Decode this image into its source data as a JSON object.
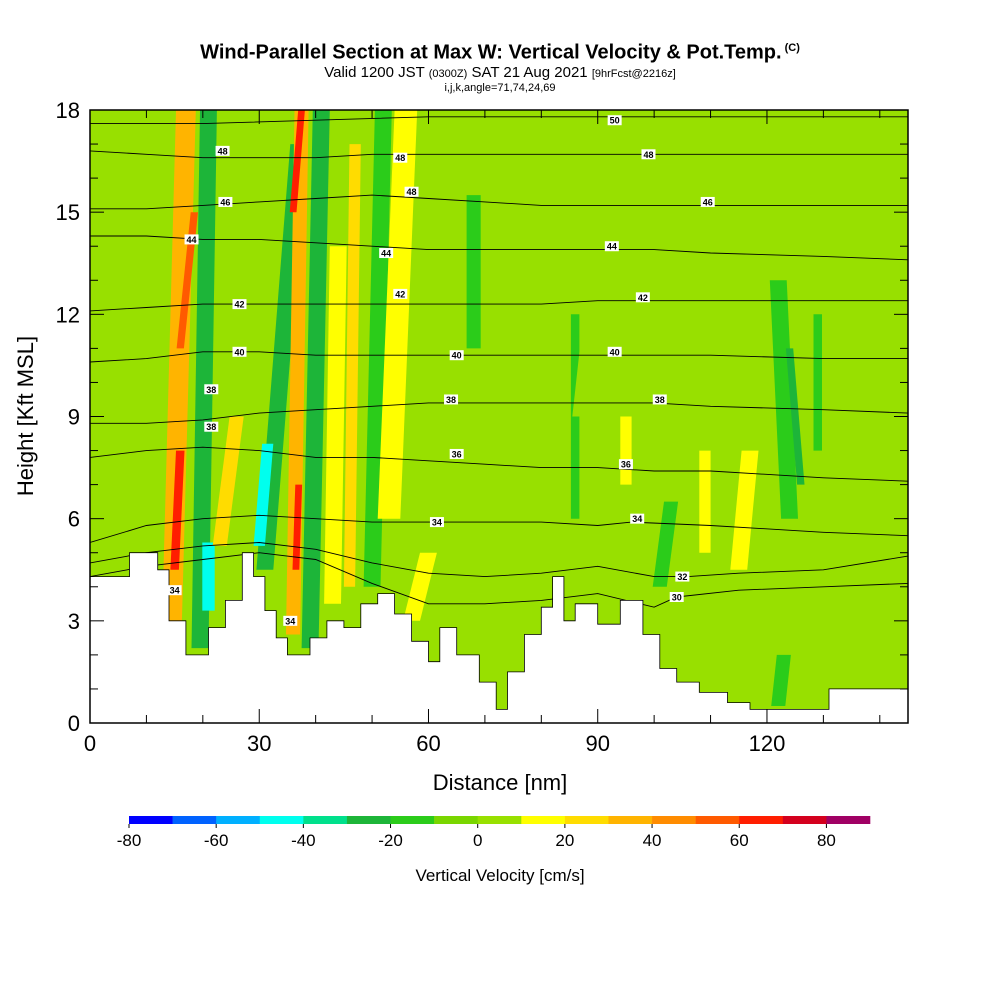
{
  "header": {
    "title": "Wind-Parallel Section at Max W: Vertical Velocity & Pot.Temp.",
    "copyright": "(C)",
    "valid_prefix": "Valid 1200 JST",
    "valid_z": "(0300Z)",
    "valid_date": "SAT 21 Aug 2021",
    "forecast": "[9hrFcst@2216z]",
    "indices": "i,j,k,angle=71,74,24,69"
  },
  "chart_data": {
    "type": "heatmap",
    "title": "Wind-Parallel Section at Max W: Vertical Velocity & Pot.Temp.",
    "xlabel": "Distance [nm]",
    "ylabel": "Height [Kft MSL]",
    "xlim": [
      0,
      145
    ],
    "ylim": [
      0,
      18
    ],
    "xticks": [
      0,
      30,
      60,
      90,
      120
    ],
    "yticks": [
      0,
      3,
      6,
      9,
      12,
      15,
      18
    ],
    "x_minor_step": 10,
    "y_minor_step": 1,
    "terrain": {
      "x": [
        0,
        7,
        7,
        12,
        12,
        14,
        14,
        17,
        17,
        21,
        21,
        24,
        24,
        27,
        27,
        29,
        29,
        31,
        31,
        33,
        33,
        35,
        35,
        39,
        39,
        42,
        42,
        45,
        45,
        48,
        48,
        51,
        51,
        54,
        54,
        57,
        57,
        60,
        60,
        62,
        62,
        65,
        65,
        69,
        69,
        72,
        72,
        74,
        74,
        77,
        77,
        80,
        80,
        82,
        82,
        84,
        84,
        86,
        86,
        90,
        90,
        94,
        94,
        98,
        98,
        101,
        101,
        104,
        104,
        108,
        108,
        113,
        113,
        117,
        117,
        131,
        131,
        135,
        135,
        145
      ],
      "y": [
        4.3,
        4.3,
        5.0,
        5.0,
        4.5,
        4.5,
        3.0,
        3.0,
        2.0,
        2.0,
        2.8,
        2.8,
        3.6,
        3.6,
        5.0,
        5.0,
        4.3,
        4.3,
        3.3,
        3.3,
        2.5,
        2.5,
        2.0,
        2.0,
        2.5,
        2.5,
        3.0,
        3.0,
        2.8,
        2.8,
        3.5,
        3.5,
        3.8,
        3.8,
        3.2,
        3.2,
        2.4,
        2.4,
        1.8,
        1.8,
        2.8,
        2.8,
        2.0,
        2.0,
        1.2,
        1.2,
        0.4,
        0.4,
        1.5,
        1.5,
        2.6,
        2.6,
        3.4,
        3.4,
        4.3,
        4.3,
        3.0,
        3.0,
        3.5,
        3.5,
        2.9,
        2.9,
        3.6,
        3.6,
        2.6,
        2.6,
        1.6,
        1.6,
        1.2,
        1.2,
        0.9,
        0.9,
        0.6,
        0.6,
        0.4,
        0.4,
        1.0,
        1.0,
        1.0,
        1.0
      ]
    },
    "background_w": 0,
    "w_features": [
      {
        "x_bottom": 14.5,
        "x_top": 17,
        "y_bottom": 2.8,
        "y_top": 18,
        "width": 3.5,
        "w": 30
      },
      {
        "x_bottom": 15,
        "x_top": 16,
        "y_bottom": 4.5,
        "y_top": 8,
        "width": 1.5,
        "w": 65
      },
      {
        "x_bottom": 16,
        "x_top": 18.5,
        "y_bottom": 11,
        "y_top": 15,
        "width": 1.3,
        "w": 50
      },
      {
        "x_bottom": 19.5,
        "x_top": 21,
        "y_bottom": 2.2,
        "y_top": 18,
        "width": 3,
        "w": -25
      },
      {
        "x_bottom": 21,
        "x_top": 21,
        "y_bottom": 3.3,
        "y_top": 5.3,
        "width": 2.2,
        "w": -45
      },
      {
        "x_bottom": 23,
        "x_top": 26,
        "y_bottom": 5.2,
        "y_top": 9,
        "width": 2.5,
        "w": 20
      },
      {
        "x_bottom": 31,
        "x_top": 37,
        "y_bottom": 4.5,
        "y_top": 17,
        "width": 3,
        "w": -25
      },
      {
        "x_bottom": 30,
        "x_top": 31.5,
        "y_bottom": 5.2,
        "y_top": 8.2,
        "width": 2,
        "w": -50
      },
      {
        "x_bottom": 36,
        "x_top": 37.5,
        "y_bottom": 2.6,
        "y_top": 18,
        "width": 2.5,
        "w": 35
      },
      {
        "x_bottom": 36.5,
        "x_top": 37,
        "y_bottom": 4.5,
        "y_top": 7,
        "width": 1.2,
        "w": 65
      },
      {
        "x_bottom": 36,
        "x_top": 37.5,
        "y_bottom": 15,
        "y_top": 18,
        "width": 1.2,
        "w": 60
      },
      {
        "x_bottom": 39,
        "x_top": 41,
        "y_bottom": 2.2,
        "y_top": 18,
        "width": 3,
        "w": -25
      },
      {
        "x_bottom": 43,
        "x_top": 44,
        "y_bottom": 3.5,
        "y_top": 14,
        "width": 3,
        "w": 15
      },
      {
        "x_bottom": 46,
        "x_top": 47,
        "y_bottom": 4,
        "y_top": 17,
        "width": 2,
        "w": 25
      },
      {
        "x_bottom": 50,
        "x_top": 52,
        "y_bottom": 4,
        "y_top": 18,
        "width": 3,
        "w": -15
      },
      {
        "x_bottom": 53,
        "x_top": 56,
        "y_bottom": 6,
        "y_top": 18,
        "width": 4,
        "w": 10
      },
      {
        "x_bottom": 57,
        "x_top": 60,
        "y_bottom": 3,
        "y_top": 5,
        "width": 3,
        "w": 15
      },
      {
        "x_bottom": 66,
        "x_top": 70,
        "y_bottom": 6,
        "y_top": 12,
        "width": 6,
        "w": 5
      },
      {
        "x_bottom": 68,
        "x_top": 68,
        "y_bottom": 11,
        "y_top": 15.5,
        "width": 2.5,
        "w": -15
      },
      {
        "x_bottom": 86,
        "x_top": 86,
        "y_bottom": 6,
        "y_top": 12,
        "width": 1.5,
        "w": -15
      },
      {
        "x_bottom": 88,
        "x_top": 90,
        "y_bottom": 9,
        "y_top": 12,
        "width": 5,
        "w": 5
      },
      {
        "x_bottom": 95,
        "x_top": 95,
        "y_bottom": 7,
        "y_top": 9,
        "width": 2,
        "w": 15
      },
      {
        "x_bottom": 101,
        "x_top": 103,
        "y_bottom": 4,
        "y_top": 6.5,
        "width": 2.5,
        "w": -20
      },
      {
        "x_bottom": 109,
        "x_top": 109,
        "y_bottom": 5,
        "y_top": 8,
        "width": 2,
        "w": 10
      },
      {
        "x_bottom": 115,
        "x_top": 117,
        "y_bottom": 4.5,
        "y_top": 8,
        "width": 3,
        "w": 10
      },
      {
        "x_bottom": 124,
        "x_top": 122,
        "y_bottom": 6,
        "y_top": 13,
        "width": 3,
        "w": -20
      },
      {
        "x_bottom": 126,
        "x_top": 124,
        "y_bottom": 7,
        "y_top": 11,
        "width": 1.3,
        "w": -30
      },
      {
        "x_bottom": 122,
        "x_top": 123,
        "y_bottom": 0.5,
        "y_top": 2,
        "width": 2.5,
        "w": -20
      },
      {
        "x_bottom": 129,
        "x_top": 129,
        "y_bottom": 8,
        "y_top": 12,
        "width": 1.5,
        "w": -15
      },
      {
        "x_bottom": 135,
        "x_top": 133,
        "y_bottom": 7,
        "y_top": 18,
        "width": 4,
        "w": 5
      },
      {
        "x_bottom": 140,
        "x_top": 142,
        "y_bottom": 6,
        "y_top": 12,
        "width": 5,
        "w": 5
      }
    ],
    "theta_contours": [
      {
        "value": 30,
        "heights": [
          [
            0,
            4.3
          ],
          [
            10,
            4.6
          ],
          [
            20,
            4.8
          ],
          [
            30,
            5.0
          ],
          [
            40,
            4.8
          ],
          [
            50,
            4.1
          ],
          [
            60,
            3.5
          ],
          [
            70,
            3.5
          ],
          [
            80,
            3.6
          ],
          [
            90,
            3.8
          ],
          [
            100,
            3.4
          ],
          [
            104,
            3.7
          ],
          [
            115,
            3.9
          ],
          [
            130,
            4.0
          ],
          [
            145,
            4.1
          ]
        ]
      },
      {
        "value": 32,
        "heights": [
          [
            0,
            4.7
          ],
          [
            10,
            5.0
          ],
          [
            20,
            5.2
          ],
          [
            30,
            5.3
          ],
          [
            40,
            5.1
          ],
          [
            50,
            4.7
          ],
          [
            60,
            4.4
          ],
          [
            70,
            4.3
          ],
          [
            80,
            4.4
          ],
          [
            90,
            4.6
          ],
          [
            100,
            4.3
          ],
          [
            106,
            4.3
          ],
          [
            115,
            4.4
          ],
          [
            130,
            4.5
          ],
          [
            145,
            4.9
          ]
        ]
      },
      {
        "value": 34,
        "heights": [
          [
            0,
            5.3
          ],
          [
            10,
            5.8
          ],
          [
            20,
            6.0
          ],
          [
            30,
            6.1
          ],
          [
            40,
            6.0
          ],
          [
            50,
            5.9
          ],
          [
            60,
            5.9
          ],
          [
            70,
            5.9
          ],
          [
            80,
            5.9
          ],
          [
            90,
            5.8
          ],
          [
            96,
            5.9
          ],
          [
            110,
            5.8
          ],
          [
            130,
            5.6
          ],
          [
            145,
            5.5
          ]
        ]
      },
      {
        "value": 36,
        "heights": [
          [
            0,
            7.8
          ],
          [
            10,
            8.0
          ],
          [
            20,
            8.1
          ],
          [
            30,
            8.0
          ],
          [
            40,
            7.8
          ],
          [
            50,
            7.8
          ],
          [
            60,
            7.7
          ],
          [
            70,
            7.6
          ],
          [
            80,
            7.5
          ],
          [
            90,
            7.5
          ],
          [
            100,
            7.4
          ],
          [
            110,
            7.4
          ],
          [
            130,
            7.2
          ],
          [
            145,
            7.1
          ]
        ]
      },
      {
        "value": 38,
        "heights": [
          [
            0,
            8.8
          ],
          [
            10,
            8.8
          ],
          [
            20,
            8.9
          ],
          [
            30,
            9.1
          ],
          [
            40,
            9.2
          ],
          [
            50,
            9.3
          ],
          [
            60,
            9.4
          ],
          [
            70,
            9.4
          ],
          [
            80,
            9.4
          ],
          [
            90,
            9.4
          ],
          [
            100,
            9.4
          ],
          [
            110,
            9.3
          ],
          [
            130,
            9.2
          ],
          [
            145,
            9.1
          ]
        ]
      },
      {
        "value": 40,
        "heights": [
          [
            0,
            10.6
          ],
          [
            10,
            10.7
          ],
          [
            20,
            10.9
          ],
          [
            30,
            10.9
          ],
          [
            40,
            10.8
          ],
          [
            50,
            10.8
          ],
          [
            60,
            10.8
          ],
          [
            70,
            10.8
          ],
          [
            80,
            10.8
          ],
          [
            90,
            10.8
          ],
          [
            100,
            10.8
          ],
          [
            110,
            10.8
          ],
          [
            130,
            10.7
          ],
          [
            145,
            10.7
          ]
        ]
      },
      {
        "value": 42,
        "heights": [
          [
            0,
            12.1
          ],
          [
            10,
            12.2
          ],
          [
            20,
            12.3
          ],
          [
            30,
            12.3
          ],
          [
            40,
            12.3
          ],
          [
            50,
            12.3
          ],
          [
            60,
            12.3
          ],
          [
            70,
            12.3
          ],
          [
            80,
            12.3
          ],
          [
            90,
            12.4
          ],
          [
            100,
            12.4
          ],
          [
            110,
            12.4
          ],
          [
            130,
            12.4
          ],
          [
            145,
            12.4
          ]
        ]
      },
      {
        "value": 44,
        "heights": [
          [
            0,
            14.3
          ],
          [
            10,
            14.3
          ],
          [
            20,
            14.2
          ],
          [
            30,
            14.2
          ],
          [
            40,
            14.1
          ],
          [
            50,
            14.0
          ],
          [
            60,
            13.9
          ],
          [
            70,
            13.9
          ],
          [
            80,
            13.9
          ],
          [
            90,
            13.9
          ],
          [
            100,
            13.9
          ],
          [
            110,
            13.8
          ],
          [
            130,
            13.7
          ],
          [
            145,
            13.6
          ]
        ]
      },
      {
        "value": 46,
        "heights": [
          [
            0,
            15.1
          ],
          [
            10,
            15.1
          ],
          [
            20,
            15.2
          ],
          [
            30,
            15.3
          ],
          [
            40,
            15.4
          ],
          [
            50,
            15.5
          ],
          [
            60,
            15.4
          ],
          [
            70,
            15.3
          ],
          [
            80,
            15.2
          ],
          [
            90,
            15.2
          ],
          [
            100,
            15.2
          ],
          [
            110,
            15.2
          ],
          [
            130,
            15.2
          ],
          [
            145,
            15.2
          ]
        ]
      },
      {
        "value": 48,
        "heights": [
          [
            0,
            16.8
          ],
          [
            10,
            16.7
          ],
          [
            20,
            16.6
          ],
          [
            30,
            16.6
          ],
          [
            40,
            16.6
          ],
          [
            50,
            16.7
          ],
          [
            60,
            16.7
          ],
          [
            70,
            16.7
          ],
          [
            80,
            16.7
          ],
          [
            90,
            16.7
          ],
          [
            100,
            16.7
          ],
          [
            110,
            16.7
          ],
          [
            130,
            16.7
          ],
          [
            145,
            16.7
          ]
        ]
      },
      {
        "value": 50,
        "heights": [
          [
            0,
            17.6
          ],
          [
            20,
            17.6
          ],
          [
            40,
            17.7
          ],
          [
            60,
            17.8
          ],
          [
            80,
            17.8
          ],
          [
            100,
            17.8
          ],
          [
            120,
            17.8
          ],
          [
            145,
            17.8
          ]
        ]
      }
    ],
    "contour_labels": [
      {
        "text": "48",
        "x": 23.5,
        "y": 16.8
      },
      {
        "text": "46",
        "x": 24,
        "y": 15.3
      },
      {
        "text": "44",
        "x": 18,
        "y": 14.2
      },
      {
        "text": "42",
        "x": 26.5,
        "y": 12.3
      },
      {
        "text": "40",
        "x": 26.5,
        "y": 10.9
      },
      {
        "text": "38",
        "x": 21.5,
        "y": 9.8
      },
      {
        "text": "38",
        "x": 21.5,
        "y": 8.7
      },
      {
        "text": "34",
        "x": 15,
        "y": 3.9
      },
      {
        "text": "34",
        "x": 35.5,
        "y": 3.0
      },
      {
        "text": "48",
        "x": 55,
        "y": 16.6
      },
      {
        "text": "48",
        "x": 57,
        "y": 15.6
      },
      {
        "text": "44",
        "x": 52.5,
        "y": 13.8
      },
      {
        "text": "42",
        "x": 55,
        "y": 12.6
      },
      {
        "text": "40",
        "x": 65,
        "y": 10.8
      },
      {
        "text": "38",
        "x": 64,
        "y": 9.5
      },
      {
        "text": "36",
        "x": 65,
        "y": 7.9
      },
      {
        "text": "34",
        "x": 61.5,
        "y": 5.9
      },
      {
        "text": "50",
        "x": 93,
        "y": 17.7
      },
      {
        "text": "48",
        "x": 99,
        "y": 16.7
      },
      {
        "text": "46",
        "x": 109.5,
        "y": 15.3
      },
      {
        "text": "44",
        "x": 92.5,
        "y": 14.0
      },
      {
        "text": "42",
        "x": 98,
        "y": 12.5
      },
      {
        "text": "40",
        "x": 93,
        "y": 10.9
      },
      {
        "text": "38",
        "x": 101,
        "y": 9.5
      },
      {
        "text": "36",
        "x": 95,
        "y": 7.6
      },
      {
        "text": "34",
        "x": 97,
        "y": 6.0
      },
      {
        "text": "32",
        "x": 105,
        "y": 4.3
      },
      {
        "text": "30",
        "x": 104,
        "y": 3.7
      }
    ],
    "colorbar": {
      "label": "Vertical Velocity [cm/s]",
      "boundaries": [
        -80,
        -70,
        -60,
        -50,
        -40,
        -30,
        -20,
        -10,
        0,
        10,
        20,
        30,
        40,
        50,
        60,
        70,
        80,
        90
      ],
      "colors": [
        "#0000ff",
        "#0062ff",
        "#00b0ff",
        "#00ffee",
        "#00e08c",
        "#1db539",
        "#2bcc1a",
        "#7ad600",
        "#98e000",
        "#ffff00",
        "#ffdc00",
        "#ffb400",
        "#ff8c00",
        "#ff5a00",
        "#ff1e00",
        "#d4001e",
        "#a00064"
      ],
      "tick_labels": [
        "-80",
        "-60",
        "-40",
        "-20",
        "0",
        "20",
        "40",
        "60",
        "80"
      ],
      "tick_values": [
        -80,
        -60,
        -40,
        -20,
        0,
        20,
        40,
        60,
        80
      ]
    }
  }
}
